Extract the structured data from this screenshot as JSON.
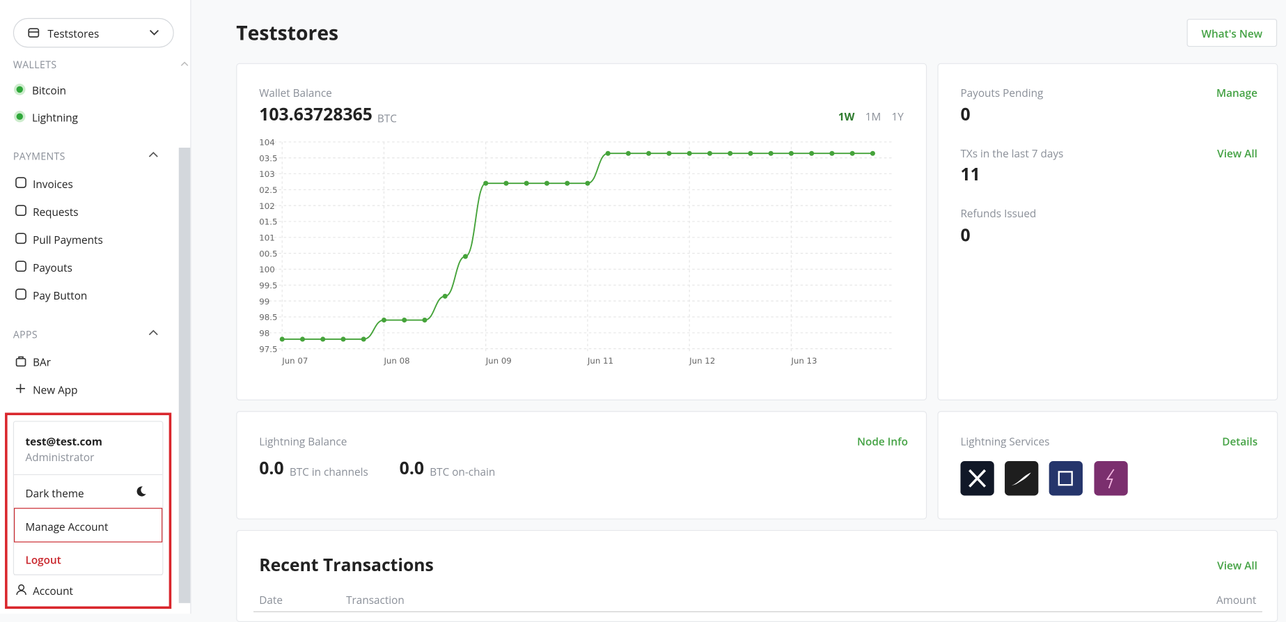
{
  "sidebar": {
    "store_selector": "Teststores",
    "wallets": {
      "title": "WALLETS",
      "items": [
        "Bitcoin",
        "Lightning"
      ]
    },
    "payments": {
      "title": "PAYMENTS",
      "items": [
        "Invoices",
        "Requests",
        "Pull Payments",
        "Payouts",
        "Pay Button"
      ]
    },
    "apps": {
      "title": "APPS",
      "items": [
        "BAr",
        "New App"
      ]
    },
    "account_menu": {
      "email": "test@test.com",
      "role": "Administrator",
      "dark_theme": "Dark theme",
      "manage": "Manage Account",
      "logout": "Logout"
    },
    "account": "Account"
  },
  "header": {
    "title": "Teststores",
    "whats_new": "What's New"
  },
  "wallet_card": {
    "label": "Wallet Balance",
    "amount": "103.63728365",
    "unit": "BTC",
    "ranges": [
      "1W",
      "1M",
      "1Y"
    ]
  },
  "chart_data": {
    "type": "line",
    "categories": [
      "Jun 07",
      null,
      null,
      null,
      null,
      "Jun 08",
      null,
      null,
      null,
      null,
      "Jun 09",
      null,
      null,
      null,
      null,
      "Jun 11",
      null,
      null,
      null,
      null,
      "Jun 12",
      null,
      null,
      null,
      null,
      "Jun 13",
      null,
      null,
      null,
      null
    ],
    "series": [
      {
        "name": "Wallet Balance",
        "color": "#45a33a",
        "values": [
          97.8,
          97.8,
          97.8,
          97.8,
          97.8,
          98.4,
          98.4,
          98.4,
          99.15,
          100.4,
          102.7,
          102.7,
          102.7,
          102.7,
          102.7,
          102.7,
          103.64,
          103.64,
          103.64,
          103.64,
          103.64,
          103.64,
          103.64,
          103.64,
          103.64,
          103.64,
          103.64,
          103.64,
          103.64,
          103.64
        ]
      }
    ],
    "ylim": [
      97.5,
      104
    ],
    "yticks": [
      104,
      {
        "value": 103.5,
        "label": "03.5"
      },
      103,
      {
        "value": 102.5,
        "label": "02.5"
      },
      102,
      {
        "value": 101.5,
        "label": "01.5"
      },
      101,
      {
        "value": 100.5,
        "label": "00.5"
      },
      100,
      99.5,
      99,
      98.5,
      98,
      97.5
    ],
    "grid": true
  },
  "stats": {
    "payouts_pending": {
      "label": "Payouts Pending",
      "value": 0,
      "action": "Manage"
    },
    "txs": {
      "label": "TXs in the last 7 days",
      "value": 11,
      "action": "View All"
    },
    "refunds": {
      "label": "Refunds Issued",
      "value": 0
    }
  },
  "lightning_balance": {
    "title": "Lightning Balance",
    "action": "Node Info",
    "channels": {
      "value": "0.0",
      "unit": "BTC in channels"
    },
    "onchain": {
      "value": "0.0",
      "unit": "BTC on-chain"
    }
  },
  "lightning_services": {
    "title": "Lightning Services",
    "action": "Details"
  },
  "recent_transactions": {
    "title": "Recent Transactions",
    "action": "View All",
    "columns": [
      "Date",
      "Transaction",
      "Amount"
    ]
  }
}
